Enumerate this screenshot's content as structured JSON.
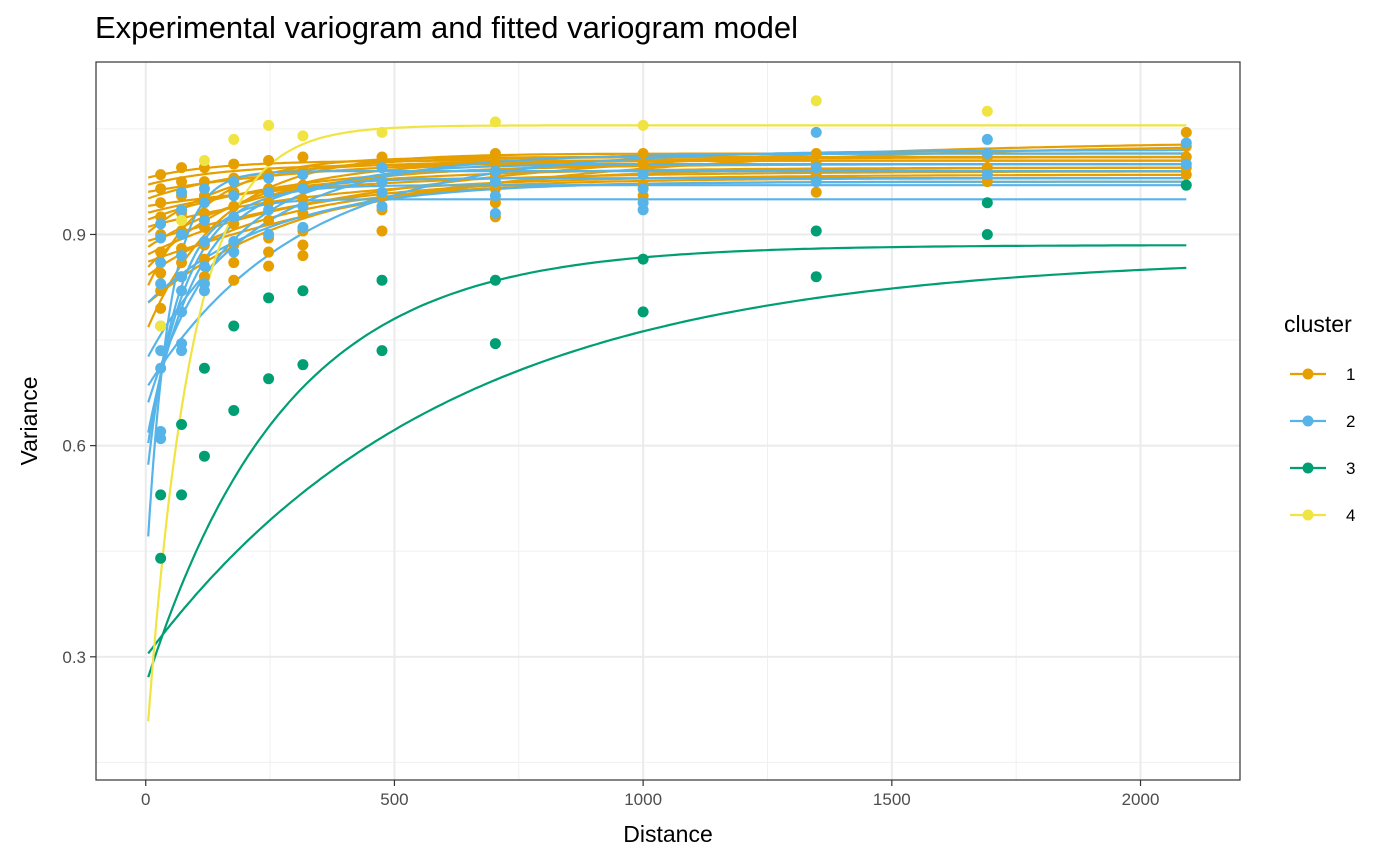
{
  "chart_data": {
    "type": "line",
    "title": "Experimental variogram and fitted variogram model",
    "xlabel": "Distance",
    "ylabel": "Variance",
    "xlim": [
      -100,
      2200
    ],
    "ylim": [
      0.125,
      1.145
    ],
    "x_ticks": [
      0,
      500,
      1000,
      1500,
      2000
    ],
    "x_tick_labels": [
      "0",
      "500",
      "1000",
      "1500",
      "2000"
    ],
    "y_ticks": [
      0.3,
      0.6,
      0.9
    ],
    "y_tick_labels": [
      "0.3",
      "0.6",
      "0.9"
    ],
    "grid": true,
    "legend": {
      "title": "cluster",
      "position": "right"
    },
    "lag_distances": [
      5,
      30,
      72,
      118,
      177,
      247,
      316,
      475,
      703,
      1000,
      1348,
      1692,
      2092
    ],
    "clusters": [
      {
        "name": "1",
        "color": "#E69F00",
        "series": [
          {
            "nugget": 0.76,
            "sill": 1.015,
            "range": 150
          },
          {
            "nugget": 0.82,
            "sill": 1.01,
            "range": 120
          },
          {
            "nugget": 0.85,
            "sill": 1.005,
            "range": 200
          },
          {
            "nugget": 0.88,
            "sill": 1.0,
            "range": 250
          },
          {
            "nugget": 0.9,
            "sill": 1.01,
            "range": 180
          },
          {
            "nugget": 0.92,
            "sill": 1.0,
            "range": 300
          },
          {
            "nugget": 0.93,
            "sill": 0.995,
            "range": 350
          },
          {
            "nugget": 0.95,
            "sill": 1.005,
            "range": 220
          },
          {
            "nugget": 0.96,
            "sill": 1.01,
            "range": 400
          },
          {
            "nugget": 0.97,
            "sill": 1.0,
            "range": 160
          },
          {
            "nugget": 0.94,
            "sill": 0.99,
            "range": 450
          },
          {
            "nugget": 0.91,
            "sill": 0.985,
            "range": 380
          },
          {
            "nugget": 0.87,
            "sill": 0.98,
            "range": 300
          },
          {
            "nugget": 0.89,
            "sill": 1.035,
            "range": 700
          },
          {
            "nugget": 0.86,
            "sill": 1.03,
            "range": 650
          },
          {
            "nugget": 0.84,
            "sill": 0.975,
            "range": 260
          },
          {
            "nugget": 0.98,
            "sill": 1.005,
            "range": 140
          },
          {
            "nugget": 0.8,
            "sill": 0.995,
            "range": 320
          }
        ]
      },
      {
        "name": "2",
        "color": "#56B4E9",
        "series": [
          {
            "nugget": 0.54,
            "sill": 0.95,
            "range": 60
          },
          {
            "nugget": 0.6,
            "sill": 0.98,
            "range": 100
          },
          {
            "nugget": 0.65,
            "sill": 1.0,
            "range": 150
          },
          {
            "nugget": 0.72,
            "sill": 1.015,
            "range": 220
          },
          {
            "nugget": 0.68,
            "sill": 1.02,
            "range": 300
          },
          {
            "nugget": 0.58,
            "sill": 0.97,
            "range": 80
          },
          {
            "nugget": 0.41,
            "sill": 0.99,
            "range": 45
          },
          {
            "nugget": 0.8,
            "sill": 0.975,
            "range": 250
          }
        ]
      },
      {
        "name": "3",
        "color": "#009E73",
        "series": [
          {
            "nugget": 0.26,
            "sill": 0.885,
            "range": 280
          },
          {
            "nugget": 0.3,
            "sill": 0.87,
            "range": 600
          }
        ]
      },
      {
        "name": "4",
        "color": "#F0E442",
        "series": [
          {
            "nugget": 0.16,
            "sill": 1.055,
            "range": 90
          }
        ]
      }
    ],
    "points": [
      {
        "cluster": "1",
        "x": 30,
        "y": 0.985
      },
      {
        "cluster": "1",
        "x": 30,
        "y": 0.965
      },
      {
        "cluster": "1",
        "x": 30,
        "y": 0.945
      },
      {
        "cluster": "1",
        "x": 30,
        "y": 0.925
      },
      {
        "cluster": "1",
        "x": 30,
        "y": 0.9
      },
      {
        "cluster": "1",
        "x": 30,
        "y": 0.875
      },
      {
        "cluster": "1",
        "x": 30,
        "y": 0.845
      },
      {
        "cluster": "1",
        "x": 30,
        "y": 0.82
      },
      {
        "cluster": "1",
        "x": 30,
        "y": 0.795
      },
      {
        "cluster": "1",
        "x": 72,
        "y": 0.995
      },
      {
        "cluster": "1",
        "x": 72,
        "y": 0.975
      },
      {
        "cluster": "1",
        "x": 72,
        "y": 0.955
      },
      {
        "cluster": "1",
        "x": 72,
        "y": 0.93
      },
      {
        "cluster": "1",
        "x": 72,
        "y": 0.905
      },
      {
        "cluster": "1",
        "x": 72,
        "y": 0.88
      },
      {
        "cluster": "1",
        "x": 72,
        "y": 0.86
      },
      {
        "cluster": "1",
        "x": 72,
        "y": 0.84
      },
      {
        "cluster": "1",
        "x": 118,
        "y": 0.995
      },
      {
        "cluster": "1",
        "x": 118,
        "y": 0.975
      },
      {
        "cluster": "1",
        "x": 118,
        "y": 0.955
      },
      {
        "cluster": "1",
        "x": 118,
        "y": 0.93
      },
      {
        "cluster": "1",
        "x": 118,
        "y": 0.91
      },
      {
        "cluster": "1",
        "x": 118,
        "y": 0.885
      },
      {
        "cluster": "1",
        "x": 118,
        "y": 0.865
      },
      {
        "cluster": "1",
        "x": 118,
        "y": 0.84
      },
      {
        "cluster": "1",
        "x": 177,
        "y": 1.0
      },
      {
        "cluster": "1",
        "x": 177,
        "y": 0.98
      },
      {
        "cluster": "1",
        "x": 177,
        "y": 0.96
      },
      {
        "cluster": "1",
        "x": 177,
        "y": 0.94
      },
      {
        "cluster": "1",
        "x": 177,
        "y": 0.915
      },
      {
        "cluster": "1",
        "x": 177,
        "y": 0.885
      },
      {
        "cluster": "1",
        "x": 177,
        "y": 0.86
      },
      {
        "cluster": "1",
        "x": 177,
        "y": 0.835
      },
      {
        "cluster": "1",
        "x": 247,
        "y": 1.005
      },
      {
        "cluster": "1",
        "x": 247,
        "y": 0.985
      },
      {
        "cluster": "1",
        "x": 247,
        "y": 0.965
      },
      {
        "cluster": "1",
        "x": 247,
        "y": 0.945
      },
      {
        "cluster": "1",
        "x": 247,
        "y": 0.92
      },
      {
        "cluster": "1",
        "x": 247,
        "y": 0.895
      },
      {
        "cluster": "1",
        "x": 247,
        "y": 0.875
      },
      {
        "cluster": "1",
        "x": 247,
        "y": 0.855
      },
      {
        "cluster": "1",
        "x": 316,
        "y": 1.01
      },
      {
        "cluster": "1",
        "x": 316,
        "y": 0.99
      },
      {
        "cluster": "1",
        "x": 316,
        "y": 0.97
      },
      {
        "cluster": "1",
        "x": 316,
        "y": 0.95
      },
      {
        "cluster": "1",
        "x": 316,
        "y": 0.93
      },
      {
        "cluster": "1",
        "x": 316,
        "y": 0.905
      },
      {
        "cluster": "1",
        "x": 316,
        "y": 0.885
      },
      {
        "cluster": "1",
        "x": 316,
        "y": 0.87
      },
      {
        "cluster": "1",
        "x": 475,
        "y": 1.01
      },
      {
        "cluster": "1",
        "x": 475,
        "y": 0.995
      },
      {
        "cluster": "1",
        "x": 475,
        "y": 0.975
      },
      {
        "cluster": "1",
        "x": 475,
        "y": 0.955
      },
      {
        "cluster": "1",
        "x": 475,
        "y": 0.935
      },
      {
        "cluster": "1",
        "x": 475,
        "y": 0.905
      },
      {
        "cluster": "1",
        "x": 703,
        "y": 1.015
      },
      {
        "cluster": "1",
        "x": 703,
        "y": 1.0
      },
      {
        "cluster": "1",
        "x": 703,
        "y": 0.985
      },
      {
        "cluster": "1",
        "x": 703,
        "y": 0.965
      },
      {
        "cluster": "1",
        "x": 703,
        "y": 0.945
      },
      {
        "cluster": "1",
        "x": 703,
        "y": 0.925
      },
      {
        "cluster": "1",
        "x": 1000,
        "y": 1.015
      },
      {
        "cluster": "1",
        "x": 1000,
        "y": 1.0
      },
      {
        "cluster": "1",
        "x": 1000,
        "y": 0.985
      },
      {
        "cluster": "1",
        "x": 1000,
        "y": 0.97
      },
      {
        "cluster": "1",
        "x": 1000,
        "y": 0.955
      },
      {
        "cluster": "1",
        "x": 1348,
        "y": 1.015
      },
      {
        "cluster": "1",
        "x": 1348,
        "y": 1.0
      },
      {
        "cluster": "1",
        "x": 1348,
        "y": 0.985
      },
      {
        "cluster": "1",
        "x": 1348,
        "y": 0.975
      },
      {
        "cluster": "1",
        "x": 1348,
        "y": 0.96
      },
      {
        "cluster": "1",
        "x": 1692,
        "y": 1.01
      },
      {
        "cluster": "1",
        "x": 1692,
        "y": 0.995
      },
      {
        "cluster": "1",
        "x": 1692,
        "y": 0.985
      },
      {
        "cluster": "1",
        "x": 1692,
        "y": 0.975
      },
      {
        "cluster": "1",
        "x": 2092,
        "y": 1.045
      },
      {
        "cluster": "1",
        "x": 2092,
        "y": 1.025
      },
      {
        "cluster": "1",
        "x": 2092,
        "y": 1.01
      },
      {
        "cluster": "1",
        "x": 2092,
        "y": 0.995
      },
      {
        "cluster": "1",
        "x": 2092,
        "y": 0.985
      },
      {
        "cluster": "2",
        "x": 30,
        "y": 0.915
      },
      {
        "cluster": "2",
        "x": 30,
        "y": 0.895
      },
      {
        "cluster": "2",
        "x": 30,
        "y": 0.86
      },
      {
        "cluster": "2",
        "x": 30,
        "y": 0.83
      },
      {
        "cluster": "2",
        "x": 30,
        "y": 0.77
      },
      {
        "cluster": "2",
        "x": 30,
        "y": 0.735
      },
      {
        "cluster": "2",
        "x": 30,
        "y": 0.71
      },
      {
        "cluster": "2",
        "x": 30,
        "y": 0.62
      },
      {
        "cluster": "2",
        "x": 30,
        "y": 0.61
      },
      {
        "cluster": "2",
        "x": 72,
        "y": 0.96
      },
      {
        "cluster": "2",
        "x": 72,
        "y": 0.935
      },
      {
        "cluster": "2",
        "x": 72,
        "y": 0.9
      },
      {
        "cluster": "2",
        "x": 72,
        "y": 0.87
      },
      {
        "cluster": "2",
        "x": 72,
        "y": 0.84
      },
      {
        "cluster": "2",
        "x": 72,
        "y": 0.82
      },
      {
        "cluster": "2",
        "x": 72,
        "y": 0.79
      },
      {
        "cluster": "2",
        "x": 72,
        "y": 0.745
      },
      {
        "cluster": "2",
        "x": 72,
        "y": 0.735
      },
      {
        "cluster": "2",
        "x": 118,
        "y": 0.965
      },
      {
        "cluster": "2",
        "x": 118,
        "y": 0.945
      },
      {
        "cluster": "2",
        "x": 118,
        "y": 0.92
      },
      {
        "cluster": "2",
        "x": 118,
        "y": 0.89
      },
      {
        "cluster": "2",
        "x": 118,
        "y": 0.855
      },
      {
        "cluster": "2",
        "x": 118,
        "y": 0.83
      },
      {
        "cluster": "2",
        "x": 118,
        "y": 0.82
      },
      {
        "cluster": "2",
        "x": 177,
        "y": 0.975
      },
      {
        "cluster": "2",
        "x": 177,
        "y": 0.955
      },
      {
        "cluster": "2",
        "x": 177,
        "y": 0.925
      },
      {
        "cluster": "2",
        "x": 177,
        "y": 0.89
      },
      {
        "cluster": "2",
        "x": 177,
        "y": 0.875
      },
      {
        "cluster": "2",
        "x": 247,
        "y": 0.98
      },
      {
        "cluster": "2",
        "x": 247,
        "y": 0.96
      },
      {
        "cluster": "2",
        "x": 247,
        "y": 0.935
      },
      {
        "cluster": "2",
        "x": 247,
        "y": 0.9
      },
      {
        "cluster": "2",
        "x": 316,
        "y": 0.985
      },
      {
        "cluster": "2",
        "x": 316,
        "y": 0.965
      },
      {
        "cluster": "2",
        "x": 316,
        "y": 0.94
      },
      {
        "cluster": "2",
        "x": 316,
        "y": 0.91
      },
      {
        "cluster": "2",
        "x": 475,
        "y": 0.995
      },
      {
        "cluster": "2",
        "x": 475,
        "y": 0.975
      },
      {
        "cluster": "2",
        "x": 475,
        "y": 0.96
      },
      {
        "cluster": "2",
        "x": 475,
        "y": 0.94
      },
      {
        "cluster": "2",
        "x": 703,
        "y": 0.99
      },
      {
        "cluster": "2",
        "x": 703,
        "y": 0.975
      },
      {
        "cluster": "2",
        "x": 703,
        "y": 0.955
      },
      {
        "cluster": "2",
        "x": 703,
        "y": 0.93
      },
      {
        "cluster": "2",
        "x": 1000,
        "y": 0.985
      },
      {
        "cluster": "2",
        "x": 1000,
        "y": 0.965
      },
      {
        "cluster": "2",
        "x": 1000,
        "y": 0.945
      },
      {
        "cluster": "2",
        "x": 1000,
        "y": 0.935
      },
      {
        "cluster": "2",
        "x": 1348,
        "y": 1.045
      },
      {
        "cluster": "2",
        "x": 1348,
        "y": 0.995
      },
      {
        "cluster": "2",
        "x": 1348,
        "y": 0.975
      },
      {
        "cluster": "2",
        "x": 1692,
        "y": 1.035
      },
      {
        "cluster": "2",
        "x": 1692,
        "y": 1.015
      },
      {
        "cluster": "2",
        "x": 1692,
        "y": 0.985
      },
      {
        "cluster": "2",
        "x": 2092,
        "y": 1.03
      },
      {
        "cluster": "2",
        "x": 2092,
        "y": 1.0
      },
      {
        "cluster": "3",
        "x": 30,
        "y": 0.53
      },
      {
        "cluster": "3",
        "x": 30,
        "y": 0.44
      },
      {
        "cluster": "3",
        "x": 72,
        "y": 0.63
      },
      {
        "cluster": "3",
        "x": 72,
        "y": 0.53
      },
      {
        "cluster": "3",
        "x": 118,
        "y": 0.71
      },
      {
        "cluster": "3",
        "x": 118,
        "y": 0.585
      },
      {
        "cluster": "3",
        "x": 177,
        "y": 0.77
      },
      {
        "cluster": "3",
        "x": 177,
        "y": 0.65
      },
      {
        "cluster": "3",
        "x": 247,
        "y": 0.81
      },
      {
        "cluster": "3",
        "x": 247,
        "y": 0.695
      },
      {
        "cluster": "3",
        "x": 316,
        "y": 0.82
      },
      {
        "cluster": "3",
        "x": 316,
        "y": 0.715
      },
      {
        "cluster": "3",
        "x": 475,
        "y": 0.835
      },
      {
        "cluster": "3",
        "x": 475,
        "y": 0.735
      },
      {
        "cluster": "3",
        "x": 703,
        "y": 0.835
      },
      {
        "cluster": "3",
        "x": 703,
        "y": 0.745
      },
      {
        "cluster": "3",
        "x": 1000,
        "y": 0.865
      },
      {
        "cluster": "3",
        "x": 1000,
        "y": 0.79
      },
      {
        "cluster": "3",
        "x": 1348,
        "y": 0.905
      },
      {
        "cluster": "3",
        "x": 1348,
        "y": 0.84
      },
      {
        "cluster": "3",
        "x": 1692,
        "y": 0.945
      },
      {
        "cluster": "3",
        "x": 1692,
        "y": 0.9
      },
      {
        "cluster": "3",
        "x": 2092,
        "y": 0.97
      },
      {
        "cluster": "4",
        "x": 30,
        "y": 0.77
      },
      {
        "cluster": "4",
        "x": 72,
        "y": 0.92
      },
      {
        "cluster": "4",
        "x": 118,
        "y": 1.005
      },
      {
        "cluster": "4",
        "x": 177,
        "y": 1.035
      },
      {
        "cluster": "4",
        "x": 247,
        "y": 1.055
      },
      {
        "cluster": "4",
        "x": 316,
        "y": 1.04
      },
      {
        "cluster": "4",
        "x": 475,
        "y": 1.045
      },
      {
        "cluster": "4",
        "x": 703,
        "y": 1.06
      },
      {
        "cluster": "4",
        "x": 1000,
        "y": 1.055
      },
      {
        "cluster": "4",
        "x": 1348,
        "y": 1.09
      },
      {
        "cluster": "4",
        "x": 1692,
        "y": 1.075
      }
    ]
  }
}
